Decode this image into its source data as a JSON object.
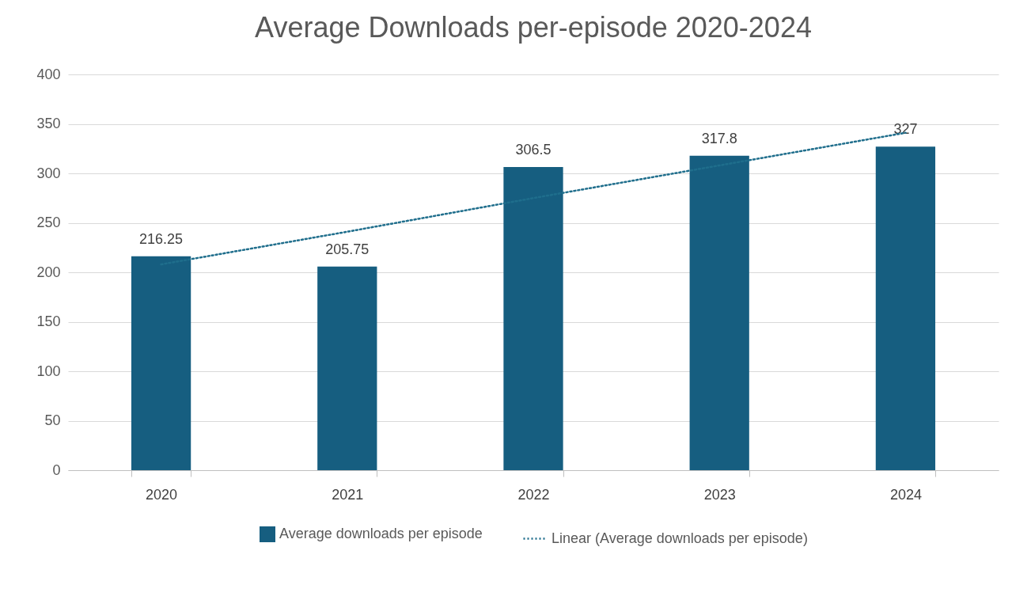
{
  "chart_data": {
    "type": "bar",
    "title": "Average Downloads per-episode 2020-2024",
    "categories": [
      "2020",
      "2021",
      "2022",
      "2023",
      "2024"
    ],
    "series": [
      {
        "name": "Average downloads per episode",
        "color": "#165e80",
        "values": [
          216.25,
          205.75,
          306.5,
          317.8,
          327
        ],
        "value_labels": [
          "216.25",
          "205.75",
          "306.5",
          "317.8",
          "327"
        ]
      },
      {
        "name": "Linear (Average downloads per episode)",
        "type": "line",
        "color": "#1f6e8c",
        "line_style": "dotted",
        "marker": "none",
        "values": [
          208,
          241,
          275,
          308,
          341
        ]
      }
    ],
    "ylim": [
      0,
      400
    ],
    "yticks": [
      0,
      50,
      100,
      150,
      200,
      250,
      300,
      350,
      400
    ],
    "grid": "y",
    "legend": "bottom"
  }
}
